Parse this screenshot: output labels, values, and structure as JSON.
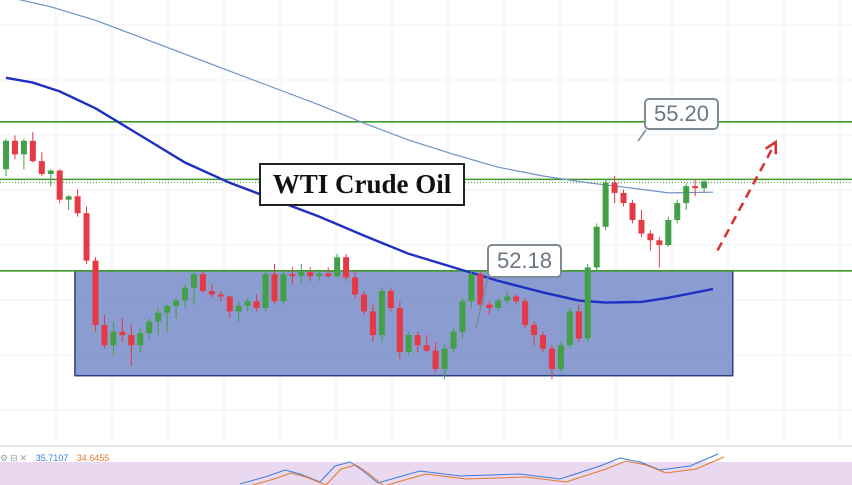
{
  "chart_data": {
    "type": "candlestick",
    "title": "WTI Crude Oil",
    "yrange": [
      50.5,
      57.0
    ],
    "price_levels": [
      {
        "label": "55.20",
        "value": 55.2
      },
      {
        "label": "",
        "value": 54.35
      },
      {
        "label": "",
        "value": 53.0
      }
    ],
    "callouts": [
      {
        "label": "55.20",
        "value": 55.2
      },
      {
        "label": "52.18",
        "value": 52.18
      }
    ],
    "range_box": {
      "top": 53.0,
      "bottom": 51.45
    },
    "candles": [
      [
        54.5,
        54.95,
        54.4,
        54.92
      ],
      [
        54.92,
        55.0,
        54.65,
        54.72
      ],
      [
        54.72,
        54.95,
        54.5,
        54.92
      ],
      [
        54.92,
        55.05,
        54.6,
        54.62
      ],
      [
        54.62,
        54.75,
        54.4,
        54.43
      ],
      [
        54.43,
        54.5,
        54.25,
        54.48
      ],
      [
        54.48,
        54.5,
        54.0,
        54.05
      ],
      [
        54.05,
        54.12,
        53.9,
        54.1
      ],
      [
        54.1,
        54.2,
        53.8,
        53.85
      ],
      [
        53.85,
        53.95,
        53.1,
        53.15
      ],
      [
        53.15,
        53.2,
        52.1,
        52.2
      ],
      [
        52.2,
        52.35,
        51.85,
        51.9
      ],
      [
        51.9,
        52.25,
        51.75,
        52.1
      ],
      [
        52.1,
        52.3,
        51.95,
        52.05
      ],
      [
        52.05,
        52.2,
        51.6,
        51.9
      ],
      [
        51.9,
        52.15,
        51.8,
        52.08
      ],
      [
        52.08,
        52.3,
        52.0,
        52.25
      ],
      [
        52.25,
        52.45,
        52.05,
        52.38
      ],
      [
        52.38,
        52.5,
        52.1,
        52.48
      ],
      [
        52.48,
        52.6,
        52.3,
        52.56
      ],
      [
        52.56,
        52.8,
        52.45,
        52.75
      ],
      [
        52.75,
        53.0,
        52.5,
        52.95
      ],
      [
        52.95,
        53.0,
        52.68,
        52.7
      ],
      [
        52.7,
        52.8,
        52.6,
        52.65
      ],
      [
        52.65,
        52.7,
        52.55,
        52.62
      ],
      [
        52.62,
        52.64,
        52.3,
        52.4
      ],
      [
        52.4,
        52.55,
        52.25,
        52.48
      ],
      [
        52.48,
        52.6,
        52.4,
        52.55
      ],
      [
        52.55,
        52.65,
        52.4,
        52.45
      ],
      [
        52.45,
        53.0,
        52.4,
        52.95
      ],
      [
        52.95,
        53.1,
        52.5,
        52.55
      ],
      [
        52.55,
        53.0,
        52.5,
        52.95
      ],
      [
        52.95,
        53.05,
        52.8,
        52.92
      ],
      [
        52.92,
        53.1,
        52.8,
        52.98
      ],
      [
        52.98,
        53.05,
        52.85,
        52.92
      ],
      [
        52.92,
        53.0,
        52.85,
        52.96
      ],
      [
        52.96,
        53.05,
        52.9,
        52.92
      ],
      [
        52.92,
        53.25,
        52.9,
        53.2
      ],
      [
        53.2,
        53.25,
        52.85,
        52.9
      ],
      [
        52.9,
        53.0,
        52.6,
        52.65
      ],
      [
        52.65,
        52.7,
        52.35,
        52.4
      ],
      [
        52.4,
        52.5,
        51.95,
        52.05
      ],
      [
        52.05,
        52.75,
        51.95,
        52.7
      ],
      [
        52.7,
        52.75,
        52.4,
        52.45
      ],
      [
        52.45,
        52.55,
        51.7,
        51.8
      ],
      [
        51.8,
        52.1,
        51.75,
        52.05
      ],
      [
        52.05,
        52.1,
        51.8,
        51.9
      ],
      [
        51.9,
        52.05,
        51.8,
        51.82
      ],
      [
        51.82,
        51.95,
        51.5,
        51.55
      ],
      [
        51.55,
        51.9,
        51.4,
        51.85
      ],
      [
        51.85,
        52.15,
        51.8,
        52.1
      ],
      [
        52.1,
        52.6,
        52.0,
        52.55
      ],
      [
        52.55,
        53.0,
        52.45,
        52.95
      ],
      [
        52.95,
        53.0,
        52.45,
        52.5
      ],
      [
        52.5,
        52.55,
        52.35,
        52.45
      ],
      [
        52.45,
        52.6,
        52.4,
        52.56
      ],
      [
        52.56,
        52.7,
        52.5,
        52.62
      ],
      [
        52.62,
        52.65,
        52.5,
        52.55
      ],
      [
        52.55,
        52.6,
        52.15,
        52.2
      ],
      [
        52.2,
        52.25,
        51.9,
        52.05
      ],
      [
        52.05,
        52.1,
        51.8,
        51.85
      ],
      [
        51.85,
        51.9,
        51.4,
        51.55
      ],
      [
        51.55,
        51.95,
        51.5,
        51.9
      ],
      [
        51.9,
        52.45,
        51.85,
        52.4
      ],
      [
        52.4,
        52.5,
        51.95,
        52.0
      ],
      [
        52.0,
        53.1,
        51.95,
        53.05
      ],
      [
        53.05,
        53.7,
        53.0,
        53.65
      ],
      [
        53.65,
        54.35,
        53.6,
        54.3
      ],
      [
        54.3,
        54.4,
        54.0,
        54.15
      ],
      [
        54.15,
        54.2,
        53.95,
        54.0
      ],
      [
        54.0,
        54.05,
        53.7,
        53.75
      ],
      [
        53.75,
        53.9,
        53.5,
        53.55
      ],
      [
        53.55,
        53.6,
        53.3,
        53.45
      ],
      [
        53.45,
        53.5,
        53.05,
        53.38
      ],
      [
        53.38,
        53.8,
        53.35,
        53.75
      ],
      [
        53.75,
        54.05,
        53.7,
        54.0
      ],
      [
        54.0,
        54.3,
        53.9,
        54.25
      ],
      [
        54.25,
        54.35,
        54.1,
        54.22
      ],
      [
        54.22,
        54.35,
        54.15,
        54.32
      ]
    ],
    "ma_slow": [
      [
        0,
        57.05
      ],
      [
        5,
        56.9
      ],
      [
        10,
        56.7
      ],
      [
        15,
        56.45
      ],
      [
        20,
        56.2
      ],
      [
        25,
        55.95
      ],
      [
        30,
        55.7
      ],
      [
        35,
        55.45
      ],
      [
        40,
        55.18
      ],
      [
        45,
        54.93
      ],
      [
        50,
        54.72
      ],
      [
        55,
        54.53
      ],
      [
        60,
        54.4
      ],
      [
        65,
        54.3
      ],
      [
        70,
        54.22
      ],
      [
        74,
        54.15
      ],
      [
        79,
        54.16
      ]
    ],
    "ma_fast": [
      [
        0,
        55.85
      ],
      [
        3,
        55.78
      ],
      [
        6,
        55.65
      ],
      [
        10,
        55.4
      ],
      [
        15,
        55.0
      ],
      [
        20,
        54.6
      ],
      [
        25,
        54.3
      ],
      [
        30,
        54.05
      ],
      [
        35,
        53.8
      ],
      [
        40,
        53.52
      ],
      [
        45,
        53.25
      ],
      [
        50,
        53.05
      ],
      [
        55,
        52.85
      ],
      [
        60,
        52.68
      ],
      [
        64,
        52.56
      ],
      [
        67,
        52.53
      ],
      [
        71,
        52.54
      ],
      [
        74,
        52.6
      ],
      [
        79,
        52.73
      ]
    ],
    "arrow": {
      "from": [
        79.5,
        53.3
      ],
      "to": [
        86,
        54.9
      ]
    },
    "oscillator": {
      "k": "35.7107",
      "d": "34.6455"
    }
  },
  "colors": {
    "bull": "#43a047",
    "bear": "#e53945",
    "level": "#3f9a2b",
    "ma_fast": "#1f2fc4",
    "ma_slow": "#6e91c7",
    "box_fill": "#7086c6",
    "box_stroke": "#2c3f86",
    "arrow": "#d92f2f",
    "osc_bg": "#ead7f0"
  }
}
